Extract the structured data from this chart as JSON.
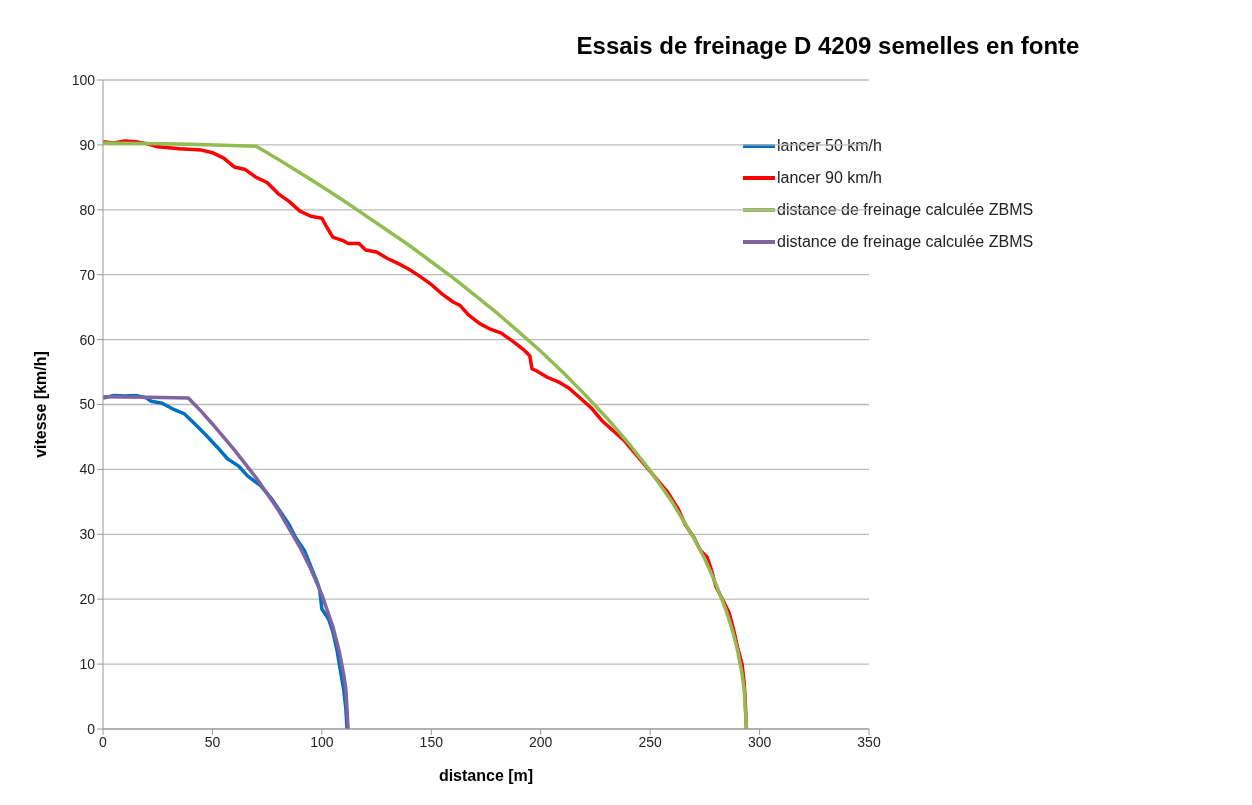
{
  "chart_data": {
    "type": "line",
    "title": "Essais de freinage D 4209 semelles en fonte",
    "xlabel": "distance [m]",
    "ylabel": "vitesse [km/h]",
    "xlim": [
      0,
      350
    ],
    "xticks": [
      0,
      50,
      100,
      150,
      200,
      250,
      300,
      350
    ],
    "ylim": [
      0,
      100
    ],
    "yticks": [
      0,
      10,
      20,
      30,
      40,
      50,
      60,
      70,
      80,
      90,
      100
    ],
    "grid": "y",
    "legend": "right",
    "marker": "none",
    "line_style": "solid",
    "series": [
      {
        "name": "lancer 50 km/h",
        "color": "#0070c0",
        "x": [
          0,
          5,
          10,
          15,
          20,
          22,
          27,
          32,
          37,
          42,
          47,
          52,
          57,
          62,
          66,
          72,
          77,
          81,
          85,
          88,
          92,
          95,
          98,
          99,
          100,
          103,
          105,
          107,
          108.5,
          110,
          111,
          111.5
        ],
        "values": [
          51,
          51.4,
          51.3,
          51.4,
          51,
          50.5,
          50.2,
          49.3,
          48.6,
          47,
          45.3,
          43.5,
          41.6,
          40.5,
          39,
          37.5,
          35.5,
          33.5,
          31.5,
          29.5,
          27.5,
          25,
          22.5,
          21.5,
          18.5,
          17,
          15,
          12,
          9,
          6,
          3,
          0
        ]
      },
      {
        "name": "lancer 90 km/h",
        "color": "#ff0000",
        "x": [
          0,
          5,
          10,
          15,
          20,
          25,
          35,
          45,
          50,
          55,
          60,
          65,
          70,
          75,
          80,
          85,
          90,
          95,
          100,
          102,
          105,
          110,
          112,
          117,
          120,
          125,
          130,
          135,
          140,
          145,
          150,
          155,
          160,
          163,
          167,
          172,
          177,
          182,
          187,
          192,
          195,
          196,
          198,
          203,
          208,
          213,
          218,
          223,
          228,
          233,
          238,
          243,
          248,
          253,
          258,
          263,
          266,
          270,
          273,
          276,
          278,
          280,
          283,
          286,
          288,
          290,
          292,
          293,
          293.5,
          294
        ],
        "values": [
          90.5,
          90.3,
          90.6,
          90.5,
          90.2,
          89.7,
          89.4,
          89.2,
          88.8,
          88,
          86.6,
          86.2,
          85,
          84.2,
          82.5,
          81.3,
          79.8,
          79,
          78.7,
          77.5,
          75.8,
          75.2,
          74.8,
          74.8,
          73.8,
          73.5,
          72.5,
          71.7,
          70.8,
          69.7,
          68.5,
          67,
          65.8,
          65.3,
          63.8,
          62.5,
          61.6,
          61,
          59.8,
          58.5,
          57.5,
          55.5,
          55.2,
          54.2,
          53.5,
          52.5,
          51,
          49.5,
          47.5,
          46,
          44.5,
          42.5,
          40.5,
          38.5,
          36.5,
          33.8,
          31.5,
          29.5,
          27.5,
          26.5,
          24.5,
          22,
          20,
          18,
          15.5,
          12.5,
          10,
          7,
          4,
          0
        ]
      },
      {
        "name": "distance de freinage calculée ZBMS",
        "color": "#92bc4f",
        "x": [
          0,
          20,
          40,
          70,
          80,
          90,
          100,
          110,
          120,
          130,
          140,
          150,
          160,
          170,
          180,
          190,
          200,
          210,
          220,
          230,
          240,
          250,
          260,
          270,
          275,
          280,
          285,
          288,
          290,
          292,
          293,
          294
        ],
        "values": [
          90.3,
          90.2,
          90.1,
          89.8,
          87.8,
          85.7,
          83.6,
          81.4,
          79.1,
          76.8,
          74.5,
          72,
          69.5,
          66.8,
          64.1,
          61.2,
          58.2,
          55,
          51.6,
          48,
          44.1,
          39.8,
          35,
          29.4,
          26.2,
          22.4,
          18,
          14.7,
          12,
          8.5,
          6,
          0
        ]
      },
      {
        "name": "distance de freinage calculée ZBMS",
        "color": "#8064a2",
        "x": [
          0,
          20,
          39,
          45,
          50,
          60,
          70,
          80,
          90,
          95,
          100,
          105,
          108,
          110,
          111,
          112
        ],
        "values": [
          51.2,
          51.1,
          51,
          48.9,
          47,
          43,
          38.7,
          33.8,
          28,
          24.6,
          20.7,
          15.8,
          11.9,
          8.4,
          6,
          0
        ]
      }
    ]
  }
}
